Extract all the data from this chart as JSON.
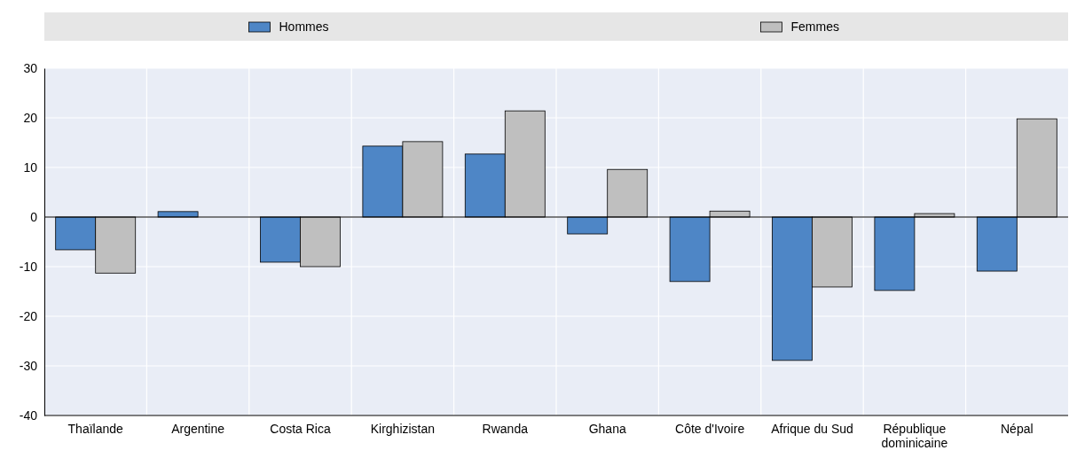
{
  "chart_data": {
    "type": "bar",
    "categories": [
      "Thaïlande",
      "Argentine",
      "Costa Rica",
      "Kirghizistan",
      "Rwanda",
      "Ghana",
      "Côte d'Ivoire",
      "Afrique du Sud",
      "République dominicaine",
      "Népal"
    ],
    "series": [
      {
        "name": "Hommes",
        "color": "#4e86c6",
        "values": [
          -6.6,
          1.1,
          -9.1,
          14.3,
          12.7,
          -3.4,
          -13.0,
          -28.9,
          -14.8,
          -10.9
        ]
      },
      {
        "name": "Femmes",
        "color": "#bfbfbf",
        "values": [
          -11.3,
          null,
          -10.0,
          15.2,
          21.4,
          9.6,
          1.2,
          -14.1,
          0.7,
          19.8
        ]
      }
    ],
    "ylim": [
      -40,
      30
    ],
    "yticks": [
      -40,
      -30,
      -20,
      -10,
      0,
      10,
      20,
      30
    ],
    "grid": true,
    "legend": "top"
  }
}
